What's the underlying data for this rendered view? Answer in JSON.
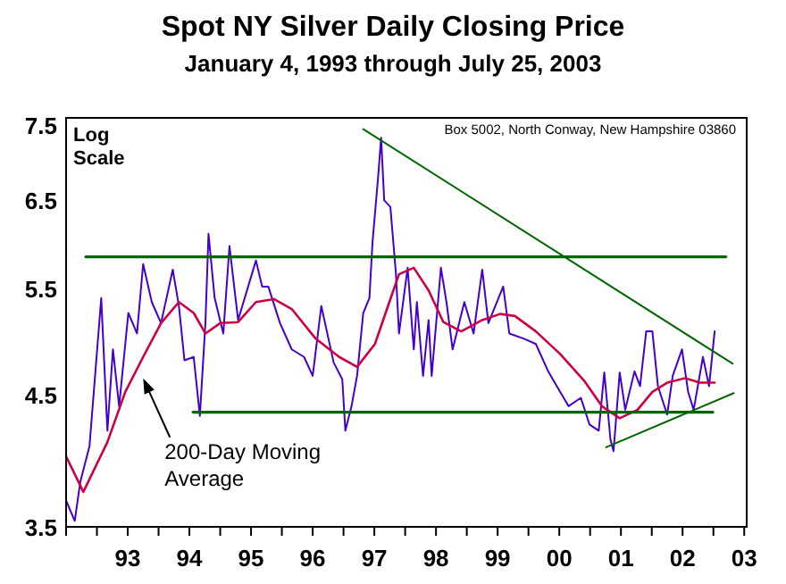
{
  "chart_data": {
    "type": "line",
    "title": "Spot NY Silver Daily Closing Price",
    "subtitle": "January 4, 1993 through July 25, 2003",
    "annotations": [
      "Log Scale",
      "Box 5002, North Conway, New Hampshire 03860"
    ],
    "log": "y",
    "grid": false,
    "legend": false,
    "marker": "none",
    "line_style": "solid",
    "xlim": [
      1992,
      2003.04
    ],
    "xticks": [
      {
        "value": 1992,
        "label": null
      },
      {
        "value": 1992.5,
        "label": null
      },
      {
        "value": 1993,
        "label": "93"
      },
      {
        "value": 1993.5,
        "label": null
      },
      {
        "value": 1994,
        "label": "94"
      },
      {
        "value": 1994.5,
        "label": null
      },
      {
        "value": 1995,
        "label": "95"
      },
      {
        "value": 1995.5,
        "label": null
      },
      {
        "value": 1996,
        "label": "96"
      },
      {
        "value": 1996.5,
        "label": null
      },
      {
        "value": 1997,
        "label": "97"
      },
      {
        "value": 1997.5,
        "label": null
      },
      {
        "value": 1998,
        "label": "98"
      },
      {
        "value": 1998.5,
        "label": null
      },
      {
        "value": 1999,
        "label": "99"
      },
      {
        "value": 1999.5,
        "label": null
      },
      {
        "value": 2000,
        "label": "00"
      },
      {
        "value": 2000.5,
        "label": null
      },
      {
        "value": 2001,
        "label": "01"
      },
      {
        "value": 2001.5,
        "label": null
      },
      {
        "value": 2002,
        "label": "02"
      },
      {
        "value": 2002.5,
        "label": null
      },
      {
        "value": 2003,
        "label": "03"
      }
    ],
    "ylim": [
      3.5,
      7.6
    ],
    "yticks": [
      3.5,
      4.5,
      5.5,
      6.5,
      7.5
    ],
    "series": [
      {
        "color": "#4400cc",
        "x": [
          1992.0,
          1992.14,
          1992.23,
          1992.38,
          1992.47,
          1992.57,
          1992.67,
          1992.76,
          1992.86,
          1993.01,
          1993.15,
          1993.25,
          1993.39,
          1993.54,
          1993.73,
          1993.83,
          1993.92,
          1994.07,
          1994.17,
          1994.26,
          1994.31,
          1994.41,
          1994.55,
          1994.65,
          1994.79,
          1995.08,
          1995.18,
          1995.28,
          1995.47,
          1995.66,
          1995.86,
          1996.0,
          1996.14,
          1996.34,
          1996.48,
          1996.53,
          1996.63,
          1996.72,
          1996.82,
          1996.92,
          1996.97,
          1997.06,
          1997.11,
          1997.16,
          1997.26,
          1997.35,
          1997.4,
          1997.54,
          1997.64,
          1997.69,
          1997.79,
          1997.88,
          1997.93,
          1998.08,
          1998.17,
          1998.27,
          1998.46,
          1998.61,
          1998.75,
          1998.85,
          1999.09,
          1999.19,
          1999.43,
          1999.62,
          1999.82,
          1999.96,
          2000.15,
          2000.35,
          2000.49,
          2000.64,
          2000.73,
          2000.83,
          2000.88,
          2000.98,
          2001.07,
          2001.22,
          2001.31,
          2001.41,
          2001.51,
          2001.6,
          2001.75,
          2001.84,
          2001.99,
          2002.09,
          2002.18,
          2002.33,
          2002.43,
          2002.52
        ],
        "values": [
          3.68,
          3.54,
          3.81,
          4.08,
          4.66,
          5.4,
          4.2,
          4.9,
          4.4,
          5.25,
          5.05,
          5.76,
          5.36,
          5.15,
          5.7,
          5.32,
          4.8,
          4.83,
          4.32,
          5.15,
          6.1,
          5.4,
          5.05,
          5.96,
          5.18,
          5.8,
          5.52,
          5.52,
          5.15,
          4.9,
          4.83,
          4.66,
          5.32,
          4.78,
          4.63,
          4.2,
          4.4,
          4.66,
          5.25,
          5.4,
          6.0,
          6.78,
          7.32,
          6.5,
          6.42,
          5.66,
          5.05,
          5.72,
          4.9,
          5.36,
          4.66,
          5.18,
          4.66,
          5.72,
          5.36,
          4.9,
          5.36,
          5.05,
          5.7,
          5.15,
          5.52,
          5.05,
          5.0,
          4.95,
          4.7,
          4.57,
          4.4,
          4.47,
          4.25,
          4.2,
          4.69,
          4.13,
          4.04,
          4.69,
          4.37,
          4.7,
          4.57,
          5.07,
          5.07,
          4.57,
          4.33,
          4.66,
          4.9,
          4.52,
          4.37,
          4.83,
          4.57,
          5.07
        ]
      },
      {
        "name": "200-Day Moving Average",
        "color": "#cc0044",
        "x": [
          1992.0,
          1992.28,
          1992.67,
          1992.96,
          1993.25,
          1993.54,
          1993.83,
          1994.07,
          1994.26,
          1994.5,
          1994.79,
          1995.08,
          1995.37,
          1995.66,
          1996.05,
          1996.43,
          1996.72,
          1997.01,
          1997.26,
          1997.4,
          1997.64,
          1997.88,
          1998.12,
          1998.41,
          1998.75,
          1999.04,
          1999.28,
          1999.62,
          2000.01,
          2000.4,
          2000.69,
          2000.98,
          2001.27,
          2001.51,
          2001.75,
          2002.04,
          2002.28,
          2002.52
        ],
        "values": [
          4.0,
          3.74,
          4.11,
          4.52,
          4.83,
          5.15,
          5.36,
          5.25,
          5.05,
          5.15,
          5.16,
          5.36,
          5.39,
          5.29,
          5.0,
          4.83,
          4.74,
          4.95,
          5.39,
          5.65,
          5.72,
          5.48,
          5.16,
          5.07,
          5.18,
          5.24,
          5.22,
          5.07,
          4.86,
          4.62,
          4.4,
          4.3,
          4.37,
          4.52,
          4.6,
          4.64,
          4.6,
          4.6
        ]
      },
      {
        "color": "#006600",
        "x": [
          1992.32,
          2002.7
        ],
        "values": [
          5.84,
          5.84
        ]
      },
      {
        "color": "#006600",
        "x": [
          1994.06,
          2002.49
        ],
        "values": [
          4.35,
          4.35
        ]
      },
      {
        "color": "#006600",
        "x": [
          1996.82,
          2002.81
        ],
        "values": [
          7.44,
          4.77
        ]
      },
      {
        "color": "#006600",
        "x": [
          2000.76,
          2002.83
        ],
        "values": [
          4.07,
          4.51
        ]
      }
    ]
  }
}
